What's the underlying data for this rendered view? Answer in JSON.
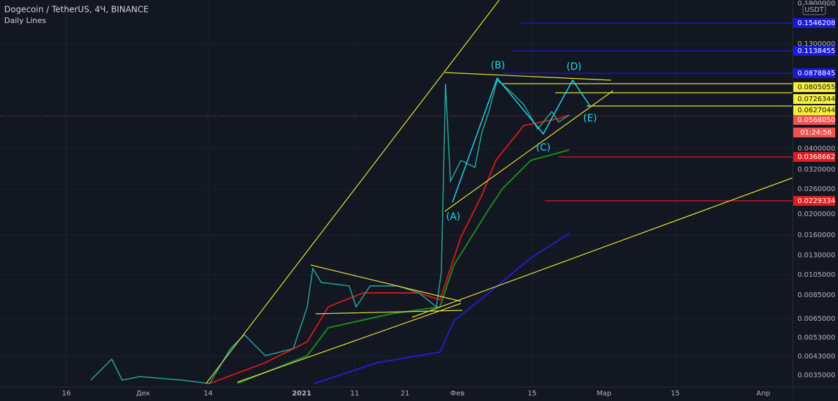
{
  "header": {
    "symbol": "Dogecoin / TetherUS, 4Ч, BINANCE",
    "indicator": "Daily Lines"
  },
  "price_axis": {
    "unit": "USDT",
    "ticks": [
      "0.1900000",
      "0.1300000",
      "0.0400000",
      "0.0320000",
      "0.0260000",
      "0.0200000",
      "0.0160000",
      "0.0130000",
      "0.0105000",
      "0.0085000",
      "0.0065000",
      "0.0053000",
      "0.0043000",
      "0.0035000"
    ],
    "level_labels": [
      "0.1546208",
      "0.1138455",
      "0.0878845",
      "0.0805055",
      "0.0726344",
      "0.0627044",
      "0.0568050",
      "01:24:56",
      "0.0368662",
      "0.0229334"
    ]
  },
  "time_axis": {
    "ticks": [
      "16",
      "Дек",
      "14",
      "2021",
      "11",
      "21",
      "Фев",
      "15",
      "Мар",
      "15",
      "Апр"
    ]
  },
  "waves": [
    "(A)",
    "(B)",
    "(C)",
    "(D)",
    "(E)"
  ]
}
